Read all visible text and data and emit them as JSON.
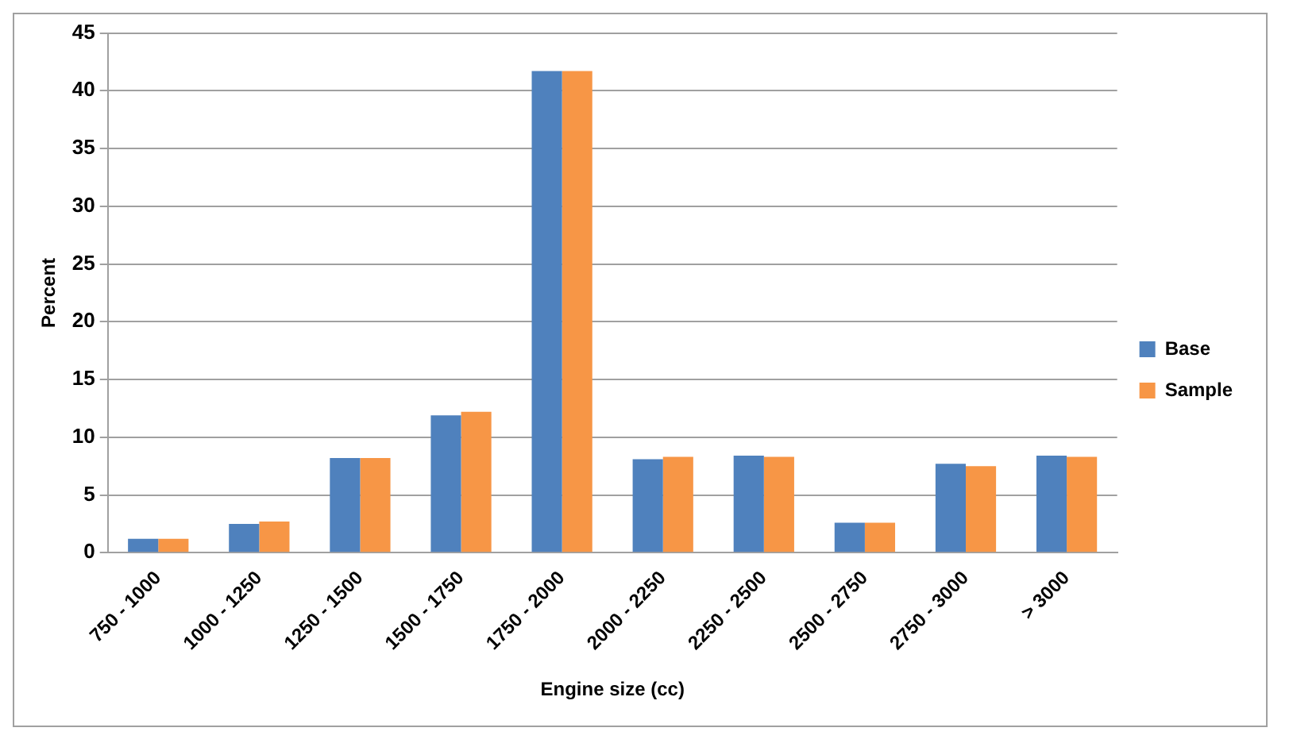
{
  "chart_data": {
    "type": "bar",
    "xlabel": "Engine size (cc)",
    "ylabel": "Percent",
    "categories": [
      "750 - 1000",
      "1000 - 1250",
      "1250 - 1500",
      "1500 - 1750",
      "1750 - 2000",
      "2000 - 2250",
      "2250 - 2500",
      "2500 - 2750",
      "2750 - 3000",
      "> 3000"
    ],
    "series": [
      {
        "name": "Base",
        "color": "#4f81bd",
        "values": [
          1.2,
          2.5,
          8.2,
          11.9,
          41.7,
          8.1,
          8.4,
          2.6,
          7.7,
          8.4
        ]
      },
      {
        "name": "Sample",
        "color": "#f79646",
        "values": [
          1.2,
          2.7,
          8.2,
          12.2,
          41.7,
          8.3,
          8.3,
          2.6,
          7.5,
          8.3
        ]
      }
    ],
    "ylim": [
      0,
      45
    ],
    "yticks": [
      0,
      5,
      10,
      15,
      20,
      25,
      30,
      35,
      40,
      45
    ],
    "grid": "y",
    "legend": "right"
  }
}
